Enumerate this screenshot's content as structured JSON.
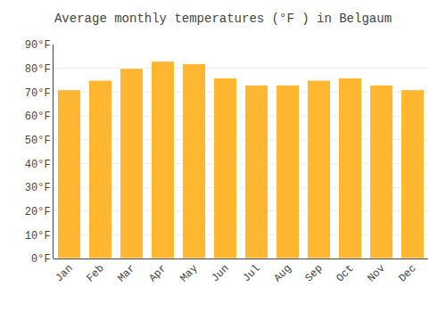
{
  "chart_data": {
    "type": "bar",
    "title": "Average monthly temperatures (°F ) in Belgaum",
    "categories": [
      "Jan",
      "Feb",
      "Mar",
      "Apr",
      "May",
      "Jun",
      "Jul",
      "Aug",
      "Sep",
      "Oct",
      "Nov",
      "Dec"
    ],
    "values": [
      71,
      75,
      80,
      83,
      82,
      76,
      73,
      73,
      75,
      76,
      73,
      71
    ],
    "color": "#FFB732",
    "ylim": [
      0,
      90
    ],
    "yticks": [
      {
        "value": 0,
        "label": "0°F"
      },
      {
        "value": 10,
        "label": "10°F"
      },
      {
        "value": 20,
        "label": "20°F"
      },
      {
        "value": 30,
        "label": "30°F"
      },
      {
        "value": 40,
        "label": "40°F"
      },
      {
        "value": 50,
        "label": "50°F"
      },
      {
        "value": 60,
        "label": "60°F"
      },
      {
        "value": 70,
        "label": "70°F"
      },
      {
        "value": 80,
        "label": "80°F"
      },
      {
        "value": 90,
        "label": "90°F"
      }
    ],
    "grid": true
  }
}
